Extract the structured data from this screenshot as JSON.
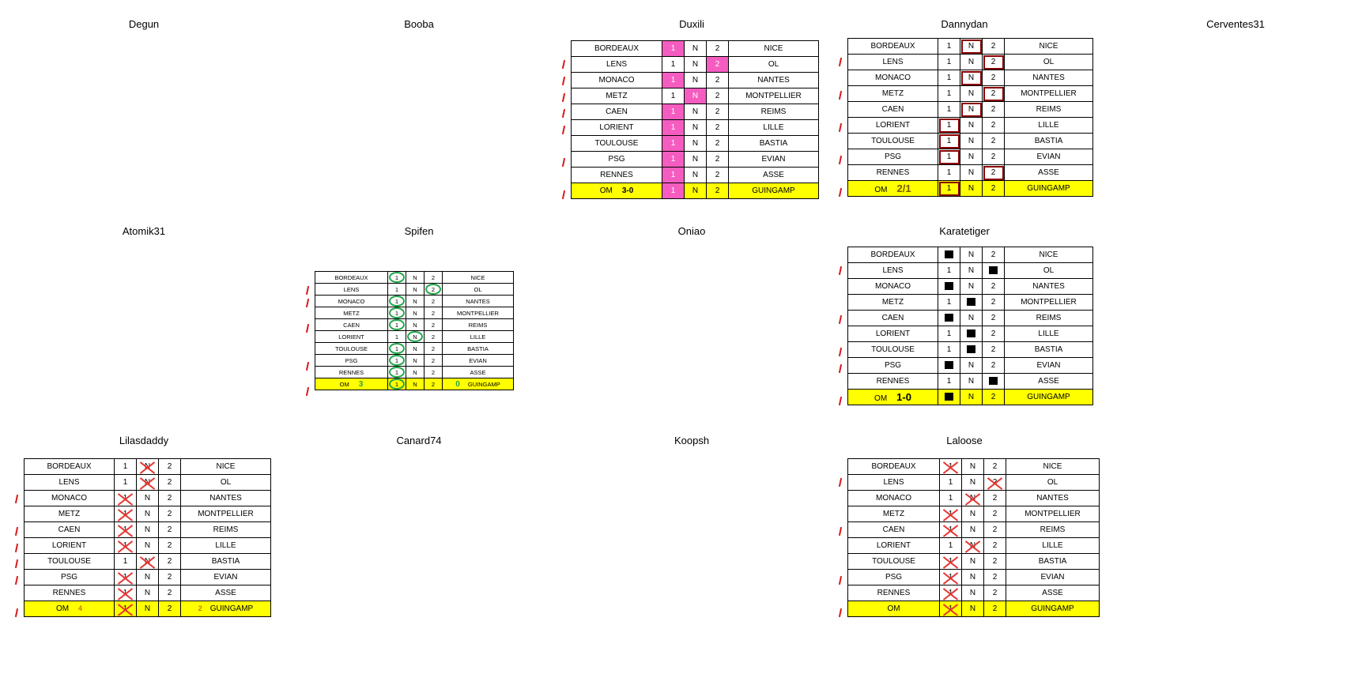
{
  "players": {
    "degun": "Degun",
    "booba": "Booba",
    "duxili": "Duxili",
    "dannydan": "Dannydan",
    "cerventes": "Cerventes31",
    "atomik": "Atomik31",
    "spifen": "Spifen",
    "oniao": "Oniao",
    "karatetiger": "Karatetiger",
    "lilasdaddy": "Lilasdaddy",
    "canard": "Canard74",
    "koopsh": "Koopsh",
    "laloose": "Laloose"
  },
  "matches": [
    {
      "home": "BORDEAUX",
      "away": "NICE"
    },
    {
      "home": "LENS",
      "away": "OL"
    },
    {
      "home": "MONACO",
      "away": "NANTES"
    },
    {
      "home": "METZ",
      "away": "MONTPELLIER"
    },
    {
      "home": "CAEN",
      "away": "REIMS"
    },
    {
      "home": "LORIENT",
      "away": "LILLE"
    },
    {
      "home": "TOULOUSE",
      "away": "BASTIA"
    },
    {
      "home": "PSG",
      "away": "EVIAN"
    },
    {
      "home": "RENNES",
      "away": "ASSE"
    },
    {
      "home": "OM",
      "away": "GUINGAMP"
    }
  ],
  "options": {
    "home": "1",
    "draw": "N",
    "away": "2"
  },
  "scores": {
    "duxili": "3-0",
    "dannydan": "2/1",
    "spifen_home": "3",
    "spifen_away": "0",
    "karatetiger": "1-0",
    "lilasdaddy_home": "4",
    "lilasdaddy_away": "2"
  },
  "picks": {
    "duxili": [
      "1",
      "2",
      "1",
      "N",
      "1",
      "1",
      "1",
      "1",
      "1",
      "1"
    ],
    "dannydan": [
      "N",
      "2",
      "N",
      "2",
      "N",
      "1",
      "1",
      "1",
      "2",
      "1"
    ],
    "spifen": [
      "1",
      "2",
      "1",
      "1",
      "1",
      "N",
      "1",
      "1",
      "1",
      "1"
    ],
    "karatetiger": [
      "1",
      "2",
      "1",
      "N",
      "1",
      "N",
      "N",
      "1",
      "2",
      "1"
    ],
    "lilasdaddy": [
      "N",
      "N",
      "1",
      "1",
      "1",
      "1",
      "N",
      "1",
      "1",
      "1"
    ],
    "laloose": [
      "1",
      "2",
      "N",
      "1",
      "1",
      "N",
      "1",
      "1",
      "1",
      "1"
    ]
  },
  "ticks": {
    "duxili": [
      false,
      true,
      true,
      true,
      true,
      true,
      false,
      true,
      false,
      true
    ],
    "dannydan": [
      false,
      true,
      false,
      true,
      false,
      true,
      false,
      true,
      false,
      true
    ],
    "spifen": [
      false,
      true,
      true,
      false,
      true,
      false,
      false,
      true,
      false,
      true
    ],
    "karatetiger": [
      false,
      true,
      false,
      false,
      true,
      false,
      true,
      true,
      false,
      true
    ],
    "lilasdaddy": [
      false,
      false,
      true,
      false,
      true,
      true,
      true,
      true,
      false,
      true
    ],
    "laloose": [
      false,
      true,
      false,
      false,
      true,
      false,
      false,
      true,
      false,
      true
    ]
  },
  "colors": {
    "highlight_row": "#ffff00",
    "pink_pick": "#f55cc0",
    "dark_red_box": "#8b0000",
    "green_circle": "#22a64a",
    "red_cross": "#e53935",
    "tick": "#d81b1b"
  }
}
